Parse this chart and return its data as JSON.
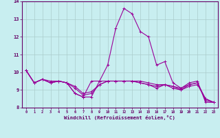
{
  "xlabel": "Windchill (Refroidissement éolien,°C)",
  "hours": [
    0,
    1,
    2,
    3,
    4,
    5,
    6,
    7,
    8,
    9,
    10,
    11,
    12,
    13,
    14,
    15,
    16,
    17,
    18,
    19,
    20,
    21,
    22,
    23
  ],
  "series": [
    [
      10.1,
      9.4,
      9.6,
      9.4,
      9.5,
      9.4,
      8.8,
      8.6,
      8.6,
      9.5,
      10.4,
      12.5,
      13.6,
      13.3,
      12.3,
      12.0,
      10.4,
      10.6,
      9.4,
      9.1,
      9.4,
      9.5,
      8.3,
      8.3
    ],
    [
      10.1,
      9.4,
      9.6,
      9.4,
      9.5,
      9.4,
      8.8,
      8.6,
      9.5,
      9.5,
      9.5,
      9.5,
      9.5,
      9.5,
      9.5,
      9.4,
      9.3,
      9.3,
      9.2,
      9.1,
      9.3,
      9.4,
      8.4,
      8.3
    ],
    [
      10.1,
      9.4,
      9.6,
      9.4,
      9.5,
      9.4,
      9.1,
      8.7,
      8.8,
      9.3,
      9.5,
      9.5,
      9.5,
      9.5,
      9.4,
      9.3,
      9.1,
      9.3,
      9.1,
      9.0,
      9.2,
      9.3,
      8.5,
      8.3
    ],
    [
      10.1,
      9.4,
      9.6,
      9.5,
      9.5,
      9.4,
      9.2,
      8.8,
      8.9,
      9.3,
      9.5,
      9.5,
      9.5,
      9.5,
      9.4,
      9.3,
      9.2,
      9.3,
      9.2,
      9.0,
      9.3,
      9.4,
      8.5,
      8.3
    ]
  ],
  "line_color": "#990099",
  "bg_color": "#c8eef0",
  "grid_color": "#aacccc",
  "axis_color": "#660066",
  "tick_color": "#660066",
  "ylim": [
    8,
    14
  ],
  "yticks": [
    8,
    9,
    10,
    11,
    12,
    13,
    14
  ],
  "xticks": [
    0,
    1,
    2,
    3,
    4,
    5,
    6,
    7,
    8,
    9,
    10,
    11,
    12,
    13,
    14,
    15,
    16,
    17,
    18,
    19,
    20,
    21,
    22,
    23
  ]
}
